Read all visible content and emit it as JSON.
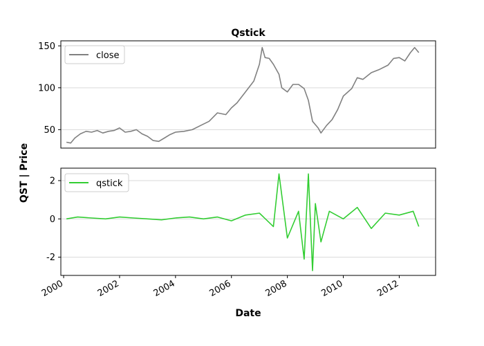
{
  "chart_data": {
    "type": "line",
    "title": "Qstick",
    "xlabel": "Date",
    "ylabel": "QST | Price",
    "x_ticks": [
      "2000",
      "2002",
      "2004",
      "2006",
      "2008",
      "2010",
      "2012"
    ],
    "x_range": [
      1999.9,
      2013.3
    ],
    "grid": "horizontal",
    "panels": [
      {
        "name": "price",
        "ylim": [
          28,
          156
        ],
        "y_ticks": [
          50,
          100,
          150
        ],
        "legend_location": "upper-left",
        "series": [
          {
            "name": "close",
            "color": "#808080",
            "x": [
              2000.1,
              2000.25,
              2000.4,
              2000.6,
              2000.8,
              2001.0,
              2001.2,
              2001.4,
              2001.6,
              2001.8,
              2002.0,
              2002.2,
              2002.4,
              2002.6,
              2002.8,
              2003.0,
              2003.2,
              2003.4,
              2003.6,
              2003.8,
              2004.0,
              2004.3,
              2004.6,
              2004.9,
              2005.2,
              2005.5,
              2005.8,
              2006.0,
              2006.2,
              2006.5,
              2006.8,
              2007.0,
              2007.1,
              2007.2,
              2007.35,
              2007.5,
              2007.7,
              2007.8,
              2008.0,
              2008.2,
              2008.4,
              2008.6,
              2008.75,
              2008.9,
              2009.1,
              2009.2,
              2009.4,
              2009.6,
              2009.8,
              2010.0,
              2010.3,
              2010.5,
              2010.7,
              2011.0,
              2011.3,
              2011.6,
              2011.8,
              2012.0,
              2012.2,
              2012.4,
              2012.55,
              2012.7
            ],
            "y": [
              35,
              34,
              40,
              45,
              48,
              47,
              49,
              46,
              48,
              49,
              52,
              47,
              48,
              50,
              45,
              42,
              37,
              36,
              40,
              44,
              47,
              48,
              50,
              55,
              60,
              70,
              68,
              76,
              82,
              95,
              108,
              128,
              148,
              136,
              135,
              128,
              116,
              100,
              95,
              104,
              104,
              99,
              85,
              60,
              52,
              46,
              55,
              62,
              74,
              90,
              99,
              112,
              110,
              118,
              122,
              127,
              135,
              136,
              132,
              142,
              148,
              142
            ]
          }
        ]
      },
      {
        "name": "qstick",
        "ylim": [
          -2.95,
          2.65
        ],
        "y_ticks": [
          -2,
          0,
          2
        ],
        "legend_location": "upper-left",
        "series": [
          {
            "name": "qstick",
            "color": "#32cd32",
            "x": [
              2000.1,
              2000.5,
              2001.0,
              2001.5,
              2002.0,
              2002.5,
              2003.0,
              2003.5,
              2004.0,
              2004.5,
              2005.0,
              2005.5,
              2006.0,
              2006.5,
              2007.0,
              2007.5,
              2007.7,
              2008.0,
              2008.4,
              2008.6,
              2008.75,
              2008.9,
              2009.0,
              2009.2,
              2009.5,
              2010.0,
              2010.5,
              2011.0,
              2011.5,
              2012.0,
              2012.5,
              2012.7
            ],
            "y": [
              0.0,
              0.1,
              0.05,
              0.0,
              0.1,
              0.05,
              0.0,
              -0.05,
              0.05,
              0.1,
              0.0,
              0.1,
              -0.1,
              0.2,
              0.3,
              -0.4,
              2.35,
              -1.0,
              0.4,
              -2.1,
              2.35,
              -2.7,
              0.8,
              -1.2,
              0.4,
              0.0,
              0.6,
              -0.5,
              0.3,
              0.2,
              0.4,
              -0.4
            ]
          }
        ]
      }
    ]
  }
}
